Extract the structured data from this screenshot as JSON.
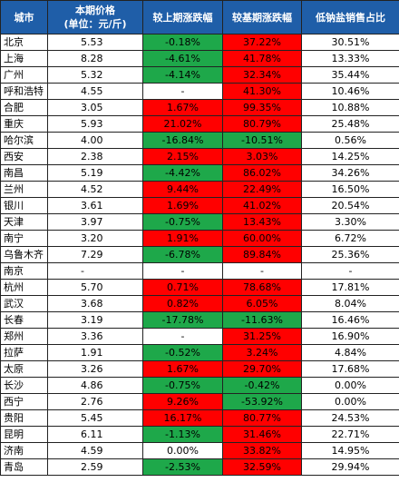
{
  "colors": {
    "header": "#1f5ea8",
    "up": "#ff0000",
    "down": "#1ea84a",
    "none": "#ffffff"
  },
  "headers": {
    "city": "城市",
    "price_line1": "本期价格",
    "price_line2": "(单位：元/斤)",
    "mom": "较上期涨跌幅",
    "yoy": "较基期涨跌幅",
    "share": "低钠盐销售占比"
  },
  "rows": [
    {
      "city": "北京",
      "price": "5.53",
      "mom": "-0.18%",
      "yoy": "37.22%",
      "share": "30.51%"
    },
    {
      "city": "上海",
      "price": "8.28",
      "mom": "-4.61%",
      "yoy": "41.78%",
      "share": "13.33%"
    },
    {
      "city": "广州",
      "price": "5.32",
      "mom": "-4.14%",
      "yoy": "32.34%",
      "share": "35.44%"
    },
    {
      "city": "呼和浩特",
      "price": "4.55",
      "mom": "-",
      "yoy": "41.30%",
      "share": "10.46%"
    },
    {
      "city": "合肥",
      "price": "3.05",
      "mom": "1.67%",
      "yoy": "99.35%",
      "share": "10.88%"
    },
    {
      "city": "重庆",
      "price": "5.93",
      "mom": "21.02%",
      "yoy": "80.79%",
      "share": "25.48%"
    },
    {
      "city": "哈尔滨",
      "price": "4.00",
      "mom": "-16.84%",
      "yoy": "-10.51%",
      "share": "0.56%"
    },
    {
      "city": "西安",
      "price": "2.38",
      "mom": "2.15%",
      "yoy": "3.03%",
      "share": "14.25%"
    },
    {
      "city": "南昌",
      "price": "5.19",
      "mom": "-4.42%",
      "yoy": "86.02%",
      "share": "34.26%"
    },
    {
      "city": "兰州",
      "price": "4.52",
      "mom": "9.44%",
      "yoy": "22.49%",
      "share": "16.50%"
    },
    {
      "city": "银川",
      "price": "3.61",
      "mom": "1.69%",
      "yoy": "41.02%",
      "share": "20.54%"
    },
    {
      "city": "天津",
      "price": "3.97",
      "mom": "-0.75%",
      "yoy": "13.43%",
      "share": "3.30%"
    },
    {
      "city": "南宁",
      "price": "3.20",
      "mom": "1.91%",
      "yoy": "60.00%",
      "share": "6.72%"
    },
    {
      "city": "乌鲁木齐",
      "price": "7.29",
      "mom": "-6.78%",
      "yoy": "89.84%",
      "share": "25.36%"
    },
    {
      "city": "南京",
      "price": "-",
      "mom": "-",
      "yoy": "-",
      "share": "-"
    },
    {
      "city": "杭州",
      "price": "5.70",
      "mom": "0.71%",
      "yoy": "78.68%",
      "share": "17.81%"
    },
    {
      "city": "武汉",
      "price": "3.68",
      "mom": "0.82%",
      "yoy": "6.05%",
      "share": "8.04%"
    },
    {
      "city": "长春",
      "price": "3.19",
      "mom": "-17.78%",
      "yoy": "-11.63%",
      "share": "16.46%"
    },
    {
      "city": "郑州",
      "price": "3.36",
      "mom": "-",
      "yoy": "31.25%",
      "share": "16.90%"
    },
    {
      "city": "拉萨",
      "price": "1.91",
      "mom": "-0.52%",
      "yoy": "3.24%",
      "share": "4.84%"
    },
    {
      "city": "太原",
      "price": "3.26",
      "mom": "1.67%",
      "yoy": "29.70%",
      "share": "17.68%"
    },
    {
      "city": "长沙",
      "price": "4.86",
      "mom": "-0.75%",
      "yoy": "-0.42%",
      "share": "0.00%"
    },
    {
      "city": "西宁",
      "price": "2.76",
      "mom": "9.26%",
      "yoy": "-53.92%",
      "share": "0.00%"
    },
    {
      "city": "贵阳",
      "price": "5.45",
      "mom": "16.17%",
      "yoy": "80.77%",
      "share": "24.53%"
    },
    {
      "city": "昆明",
      "price": "6.11",
      "mom": "-1.13%",
      "yoy": "31.46%",
      "share": "22.71%"
    },
    {
      "city": "济南",
      "price": "4.59",
      "mom": "0.00%",
      "yoy": "33.82%",
      "share": "14.95%"
    },
    {
      "city": "青岛",
      "price": "2.59",
      "mom": "-2.53%",
      "yoy": "32.59%",
      "share": "29.94%"
    }
  ]
}
